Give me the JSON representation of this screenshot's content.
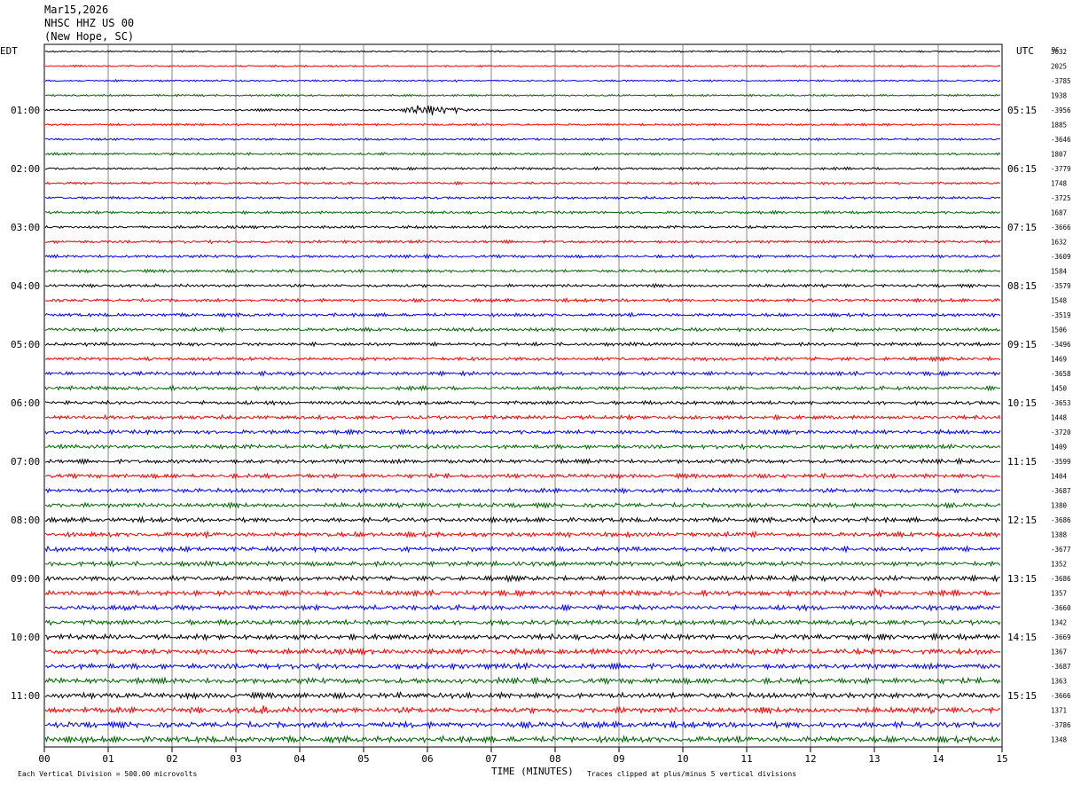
{
  "header": {
    "date": "Mar15,2026",
    "station": "NHSC HHZ US 00",
    "location": "(New Hope, SC)"
  },
  "labels": {
    "left_tz": "EDT",
    "right_tz": "UTC",
    "right_top": "DC",
    "xlabel": "TIME (MINUTES)",
    "scale_note": "Each Vertical Division =  500.00 microvolts",
    "clip_note": "Traces clipped at plus/minus 5 vertical divisions"
  },
  "chart_data": {
    "type": "line",
    "title": "NHSC HHZ US 00",
    "xlabel": "TIME (MINUTES)",
    "x_ticks": [
      "00",
      "01",
      "02",
      "03",
      "04",
      "05",
      "06",
      "07",
      "08",
      "09",
      "10",
      "11",
      "12",
      "13",
      "14",
      "15"
    ],
    "xlim": [
      0,
      15
    ],
    "grid": true,
    "trace_colors": [
      "#000000",
      "#ff0000",
      "#0000ff",
      "#006400"
    ],
    "left_time_labels": [
      "01:00",
      "02:00",
      "03:00",
      "04:00",
      "05:00",
      "06:00",
      "07:00",
      "08:00",
      "09:00",
      "10:00",
      "11:00"
    ],
    "right_time_labels": [
      "05:15",
      "06:15",
      "07:15",
      "08:15",
      "09:15",
      "10:15",
      "11:15",
      "12:15",
      "13:15",
      "14:15",
      "15:15"
    ],
    "dc_offsets": [
      "3032",
      "2025",
      "-3785",
      "1938",
      "-3956",
      "1885",
      "-3646",
      "1807",
      "-3779",
      "1748",
      "-3725",
      "1687",
      "-3666",
      "1632",
      "-3609",
      "1584",
      "-3579",
      "1548",
      "-3519",
      "1506",
      "-3496",
      "1469",
      "-3658",
      "1450",
      "-3653",
      "1448",
      "-3720",
      "1409",
      "-3599",
      "1404",
      "-3687",
      "1380",
      "-3686",
      "1388",
      "-3677",
      "1352",
      "-3686",
      "1357",
      "-3660",
      "1342",
      "-3669",
      "1367",
      "-3687",
      "1363",
      "-3666",
      "1371",
      "-3786",
      "1348"
    ],
    "traces": 48,
    "events": [
      {
        "trace": 4,
        "start_min": 5.55,
        "end_min": 6.8,
        "amp": 10
      },
      {
        "trace": 25,
        "start_min": 6.9,
        "end_min": 7.2,
        "amp": 4
      },
      {
        "trace": 32,
        "start_min": 11.95,
        "end_min": 12.2,
        "amp": 7
      },
      {
        "trace": 35,
        "start_min": 0.35,
        "end_min": 0.5,
        "amp": 5
      },
      {
        "trace": 37,
        "start_min": 12.9,
        "end_min": 13.5,
        "amp": 8
      },
      {
        "trace": 44,
        "start_min": 3.95,
        "end_min": 4.1,
        "amp": 5
      },
      {
        "trace": 45,
        "start_min": 3.2,
        "end_min": 3.9,
        "amp": 8
      },
      {
        "trace": 45,
        "start_min": 8.95,
        "end_min": 9.4,
        "amp": 8
      },
      {
        "trace": 46,
        "start_min": 12.3,
        "end_min": 12.5,
        "amp": 6
      }
    ]
  }
}
